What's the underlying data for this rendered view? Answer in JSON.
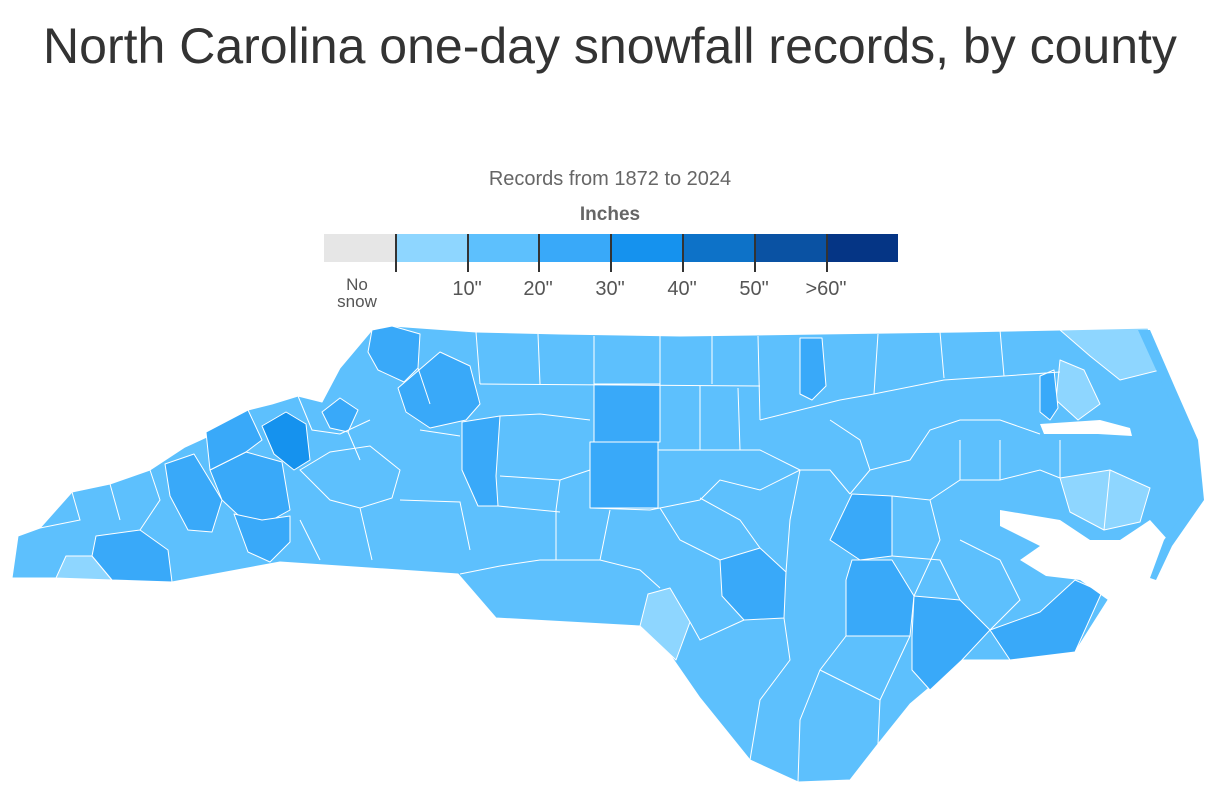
{
  "header": {
    "title": "North Carolina one-day snowfall records, by county",
    "subtitle": "Records from 1872 to 2024"
  },
  "legend": {
    "title": "Inches",
    "no_snow_label": "No snow",
    "bins": [
      {
        "label": "",
        "color": "#e6e6e6"
      },
      {
        "label": "",
        "color": "#8ed6ff"
      },
      {
        "label": "10\"",
        "color": "#5dc0fd"
      },
      {
        "label": "20\"",
        "color": "#39a9f9"
      },
      {
        "label": "30\"",
        "color": "#1592ee"
      },
      {
        "label": "40\"",
        "color": "#0d72c8"
      },
      {
        "label": "50\"",
        "color": "#0a52a3"
      },
      {
        "label": ">60\"",
        "color": "#053585"
      }
    ],
    "tick_labels": [
      "10\"",
      "20\"",
      "30\"",
      "40\"",
      "50\"",
      ">60\""
    ]
  },
  "colors": {
    "base": "#5dc0fd",
    "light": "#8ed6ff",
    "mid": "#39a9f9",
    "dark": "#1592ee",
    "border": "#ffffff"
  }
}
